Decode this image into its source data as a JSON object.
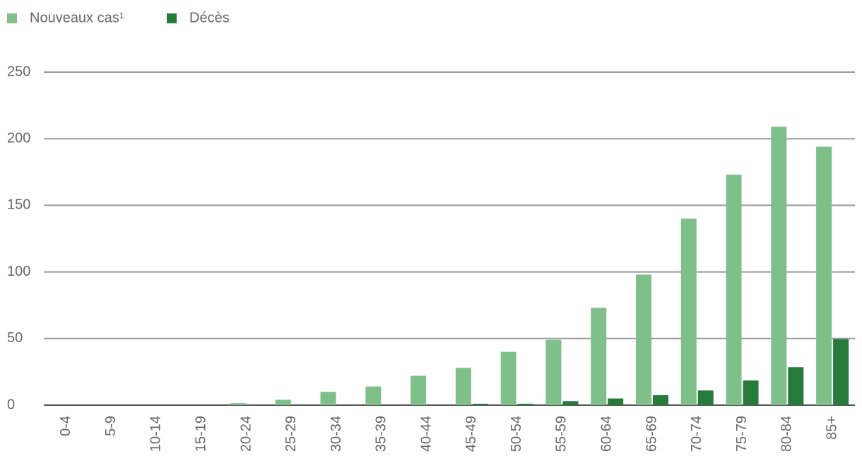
{
  "chart_data": {
    "type": "bar",
    "categories": [
      "0-4",
      "5-9",
      "10-14",
      "15-19",
      "20-24",
      "25-29",
      "30-34",
      "35-39",
      "40-44",
      "45-49",
      "50-54",
      "55-59",
      "60-64",
      "65-69",
      "70-74",
      "75-79",
      "80-84",
      "85+"
    ],
    "series": [
      {
        "name": "Nouveaux cas¹",
        "color": "#7fbf8a",
        "values": [
          0,
          0,
          0,
          0,
          1.5,
          4,
          10,
          14,
          22,
          28,
          40,
          49,
          73,
          98,
          140,
          173,
          209,
          194
        ]
      },
      {
        "name": "Décès",
        "color": "#267b3b",
        "values": [
          0,
          0,
          0,
          0,
          0,
          0,
          0,
          0,
          0,
          1,
          1,
          3,
          5,
          7.5,
          11,
          18.5,
          28.5,
          49.5
        ]
      }
    ],
    "ylim": [
      0,
      250
    ],
    "yticks": [
      0,
      50,
      100,
      150,
      200,
      250
    ],
    "grid": true,
    "legend": "top-left"
  }
}
